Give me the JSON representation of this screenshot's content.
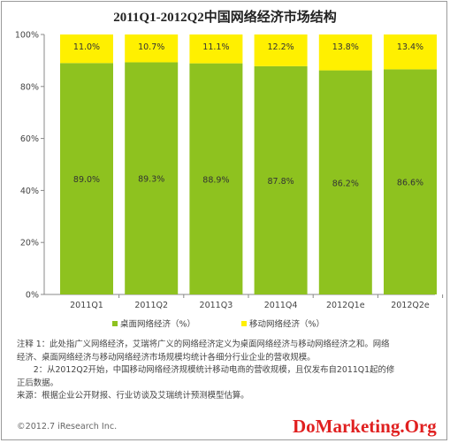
{
  "chart_data": {
    "type": "bar",
    "stacked": true,
    "title": "2011Q1-2012Q2中国网络经济市场结构",
    "categories": [
      "2011Q1",
      "2011Q2",
      "2011Q3",
      "2011Q4",
      "2012Q1e",
      "2012Q2e"
    ],
    "series": [
      {
        "name": "桌面网络经济（%）",
        "values": [
          89.0,
          89.3,
          88.9,
          87.8,
          86.2,
          86.6
        ],
        "labels": [
          "89.0%",
          "89.3%",
          "88.9%",
          "87.8%",
          "86.2%",
          "86.6%"
        ]
      },
      {
        "name": "移动网络经济（%）",
        "values": [
          11.0,
          10.7,
          11.1,
          12.2,
          13.8,
          13.4
        ],
        "labels": [
          "11.0%",
          "10.7%",
          "11.1%",
          "12.2%",
          "13.8%",
          "13.4%"
        ]
      }
    ],
    "yticks": [
      "0%",
      "20%",
      "40%",
      "60%",
      "80%",
      "100%"
    ],
    "ylim": [
      0,
      100
    ],
    "grid": false,
    "legend": "bottom",
    "colors": {
      "desktop": "#8ec21f",
      "mobile": "#fff000"
    }
  },
  "notes": [
    "注释 1：此处指广义网络经济，艾瑞将广义的网络经济定义为桌面网络经济与移动网络经济之和。网络",
    "经济、桌面网络经济与移动网络经济市场规模均统计各细分行业企业的营收规模。",
    "　　2：从2012Q2开始，中国移动网络经济规模统计移动电商的营收规模，且仅发布自2011Q1起的修",
    "正后数据。",
    "来源：根据企业公开财报、行业访谈及艾瑞统计预测模型估算。"
  ],
  "copyright": "©2012.7 iResearch Inc.",
  "watermark": "DoMarketing.Org"
}
